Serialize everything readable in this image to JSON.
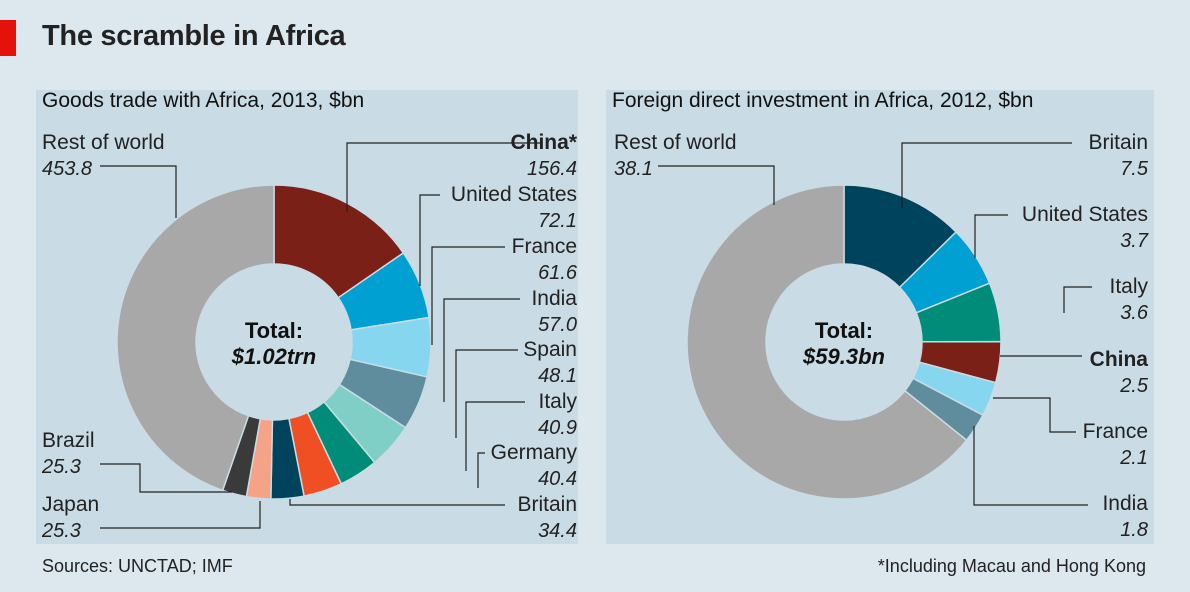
{
  "title": "The scramble in Africa",
  "source": "Sources: UNCTAD; IMF",
  "footnote": "*Including Macau and Hong Kong",
  "colors": {
    "background": "#dde8ee",
    "panel": "#c9dbe4",
    "accent": "#e3120b",
    "rest_of_world": "#a8a8a8"
  },
  "chart_data": [
    {
      "type": "pie",
      "style": "donut",
      "title": "Goods trade with Africa, 2013, $bn",
      "center_label": "Total:",
      "center_value": "$1.02trn",
      "slices": [
        {
          "name": "China*",
          "value": 156.4,
          "label": "156.4",
          "color": "#7b2016",
          "bold": true
        },
        {
          "name": "United States",
          "value": 72.1,
          "label": "72.1",
          "color": "#00a0d2"
        },
        {
          "name": "France",
          "value": 61.6,
          "label": "61.6",
          "color": "#87d6ef"
        },
        {
          "name": "India",
          "value": 57.0,
          "label": "57.0",
          "color": "#5f8d9e"
        },
        {
          "name": "Spain",
          "value": 48.1,
          "label": "48.1",
          "color": "#7fcfc6"
        },
        {
          "name": "Italy",
          "value": 40.9,
          "label": "40.9",
          "color": "#008c78"
        },
        {
          "name": "Germany",
          "value": 40.4,
          "label": "40.4",
          "color": "#f04e23"
        },
        {
          "name": "Britain",
          "value": 34.4,
          "label": "34.4",
          "color": "#00435d"
        },
        {
          "name": "Japan",
          "value": 25.3,
          "label": "25.3",
          "color": "#f4a386"
        },
        {
          "name": "Brazil",
          "value": 25.3,
          "label": "25.3",
          "color": "#3a3a3a"
        },
        {
          "name": "Rest of world",
          "value": 453.8,
          "label": "453.8",
          "color": "#a8a8a8"
        }
      ]
    },
    {
      "type": "pie",
      "style": "donut",
      "title": "Foreign direct investment in Africa, 2012, $bn",
      "center_label": "Total:",
      "center_value": "$59.3bn",
      "slices": [
        {
          "name": "Britain",
          "value": 7.5,
          "label": "7.5",
          "color": "#00435d"
        },
        {
          "name": "United States",
          "value": 3.7,
          "label": "3.7",
          "color": "#00a0d2"
        },
        {
          "name": "Italy",
          "value": 3.6,
          "label": "3.6",
          "color": "#008c78"
        },
        {
          "name": "China",
          "value": 2.5,
          "label": "2.5",
          "color": "#7b2016",
          "bold": true
        },
        {
          "name": "France",
          "value": 2.1,
          "label": "2.1",
          "color": "#87d6ef"
        },
        {
          "name": "India",
          "value": 1.8,
          "label": "1.8",
          "color": "#5f8d9e"
        },
        {
          "name": "Rest of world",
          "value": 38.1,
          "label": "38.1",
          "color": "#a8a8a8"
        }
      ]
    }
  ]
}
